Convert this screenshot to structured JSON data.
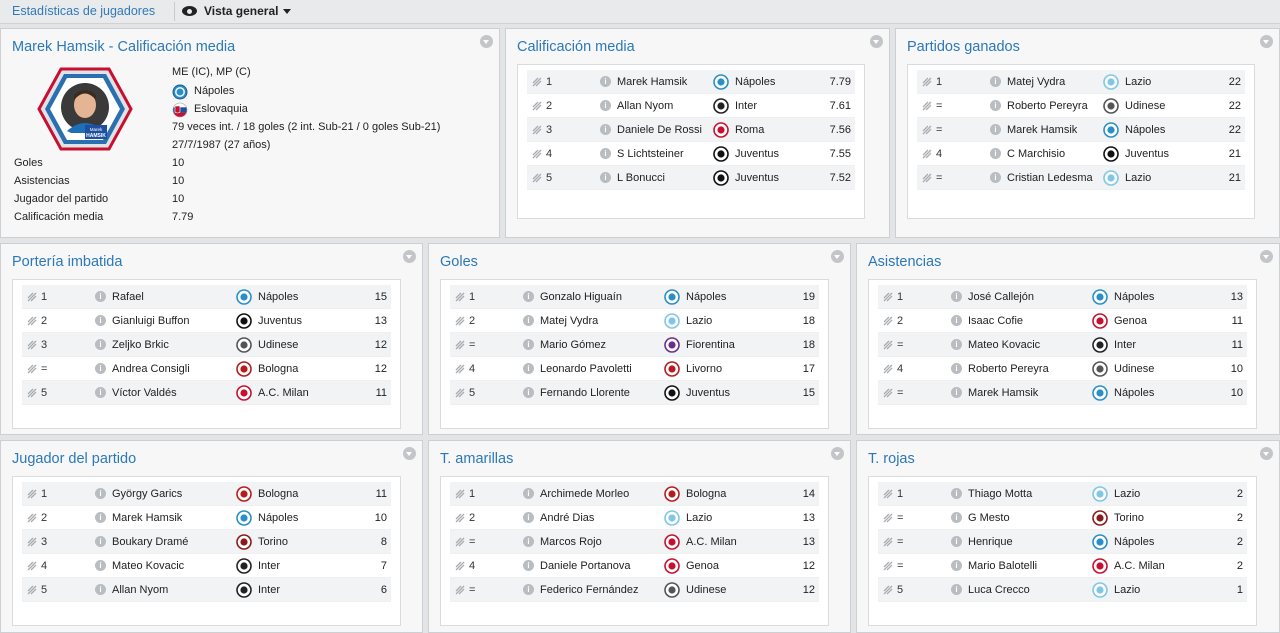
{
  "topbar": {
    "breadcrumb": "Estadísticas de jugadores",
    "view_label": "Vista general"
  },
  "colors": {
    "napoles": "#2a8fc8",
    "inter": "#222222",
    "roma": "#c8102e",
    "juventus": "#111111",
    "lazio": "#7fc6e8",
    "udinese": "#555555",
    "fiorentina": "#6b2c91",
    "livorno": "#b71c1c",
    "genoa": "#c8102e",
    "bologna": "#b71c1c",
    "acmilan": "#c8102e",
    "torino": "#8b1a1a",
    "eslovaquia": "#1e4fa0"
  },
  "profile": {
    "title": "Marek Hamsik - Calificación media",
    "positions": "ME (IC), MP (C)",
    "club": "Nápoles",
    "nation": "Eslovaquia",
    "caps": "79 veces int. / 18 goles (2 int. Sub-21 / 0 goles Sub-21)",
    "dob": "27/7/1987 (27 años)",
    "card_first": "Marek",
    "card_last": "HAMSIK",
    "stats": [
      {
        "label": "Goles",
        "value": "10"
      },
      {
        "label": "Asistencias",
        "value": "10"
      },
      {
        "label": "Jugador del partido",
        "value": "10"
      },
      {
        "label": "Calificación media",
        "value": "7.79"
      }
    ]
  },
  "panels": [
    {
      "title": "Calificación media",
      "rows": [
        {
          "pos": "1",
          "name": "Marek Hamsik",
          "club": "Nápoles",
          "badge": "napoles",
          "value": "7.79"
        },
        {
          "pos": "2",
          "name": "Allan Nyom",
          "club": "Inter",
          "badge": "inter",
          "value": "7.61"
        },
        {
          "pos": "3",
          "name": "Daniele De Rossi",
          "club": "Roma",
          "badge": "roma",
          "value": "7.56"
        },
        {
          "pos": "4",
          "name": "S Lichtsteiner",
          "club": "Juventus",
          "badge": "juventus",
          "value": "7.55"
        },
        {
          "pos": "5",
          "name": "L Bonucci",
          "club": "Juventus",
          "badge": "juventus",
          "value": "7.52"
        }
      ]
    },
    {
      "title": "Partidos ganados",
      "rows": [
        {
          "pos": "1",
          "name": "Matej Vydra",
          "club": "Lazio",
          "badge": "lazio",
          "value": "22"
        },
        {
          "pos": "=",
          "name": "Roberto Pereyra",
          "club": "Udinese",
          "badge": "udinese",
          "value": "22"
        },
        {
          "pos": "=",
          "name": "Marek Hamsik",
          "club": "Nápoles",
          "badge": "napoles",
          "value": "22"
        },
        {
          "pos": "4",
          "name": "C Marchisio",
          "club": "Juventus",
          "badge": "juventus",
          "value": "21"
        },
        {
          "pos": "=",
          "name": "Cristian Ledesma",
          "club": "Lazio",
          "badge": "lazio",
          "value": "21"
        }
      ]
    },
    {
      "title": "Portería imbatida",
      "rows": [
        {
          "pos": "1",
          "name": "Rafael",
          "club": "Nápoles",
          "badge": "napoles",
          "value": "15"
        },
        {
          "pos": "2",
          "name": "Gianluigi Buffon",
          "club": "Juventus",
          "badge": "juventus",
          "value": "13"
        },
        {
          "pos": "3",
          "name": "Zeljko Brkic",
          "club": "Udinese",
          "badge": "udinese",
          "value": "12"
        },
        {
          "pos": "=",
          "name": "Andrea Consigli",
          "club": "Bologna",
          "badge": "bologna",
          "value": "12"
        },
        {
          "pos": "5",
          "name": "Víctor Valdés",
          "club": "A.C. Milan",
          "badge": "acmilan",
          "value": "11"
        }
      ]
    },
    {
      "title": "Goles",
      "rows": [
        {
          "pos": "1",
          "name": "Gonzalo Higuaín",
          "club": "Nápoles",
          "badge": "napoles",
          "value": "19"
        },
        {
          "pos": "2",
          "name": "Matej Vydra",
          "club": "Lazio",
          "badge": "lazio",
          "value": "18"
        },
        {
          "pos": "=",
          "name": "Mario Gómez",
          "club": "Fiorentina",
          "badge": "fiorentina",
          "value": "18"
        },
        {
          "pos": "4",
          "name": "Leonardo Pavoletti",
          "club": "Livorno",
          "badge": "livorno",
          "value": "17"
        },
        {
          "pos": "5",
          "name": "Fernando Llorente",
          "club": "Juventus",
          "badge": "juventus",
          "value": "15"
        }
      ]
    },
    {
      "title": "Asistencias",
      "rows": [
        {
          "pos": "1",
          "name": "José Callejón",
          "club": "Nápoles",
          "badge": "napoles",
          "value": "13"
        },
        {
          "pos": "2",
          "name": "Isaac Cofie",
          "club": "Genoa",
          "badge": "genoa",
          "value": "11"
        },
        {
          "pos": "=",
          "name": "Mateo Kovacic",
          "club": "Inter",
          "badge": "inter",
          "value": "11"
        },
        {
          "pos": "4",
          "name": "Roberto Pereyra",
          "club": "Udinese",
          "badge": "udinese",
          "value": "10"
        },
        {
          "pos": "=",
          "name": "Marek Hamsik",
          "club": "Nápoles",
          "badge": "napoles",
          "value": "10"
        }
      ]
    },
    {
      "title": "Jugador del partido",
      "rows": [
        {
          "pos": "1",
          "name": "György Garics",
          "club": "Bologna",
          "badge": "bologna",
          "value": "11"
        },
        {
          "pos": "2",
          "name": "Marek Hamsik",
          "club": "Nápoles",
          "badge": "napoles",
          "value": "10"
        },
        {
          "pos": "3",
          "name": "Boukary Dramé",
          "club": "Torino",
          "badge": "torino",
          "value": "8"
        },
        {
          "pos": "4",
          "name": "Mateo Kovacic",
          "club": "Inter",
          "badge": "inter",
          "value": "7"
        },
        {
          "pos": "5",
          "name": "Allan Nyom",
          "club": "Inter",
          "badge": "inter",
          "value": "6"
        }
      ]
    },
    {
      "title": "T. amarillas",
      "rows": [
        {
          "pos": "1",
          "name": "Archimede Morleo",
          "club": "Bologna",
          "badge": "bologna",
          "value": "14"
        },
        {
          "pos": "2",
          "name": "André Dias",
          "club": "Lazio",
          "badge": "lazio",
          "value": "13"
        },
        {
          "pos": "=",
          "name": "Marcos Rojo",
          "club": "A.C. Milan",
          "badge": "acmilan",
          "value": "13"
        },
        {
          "pos": "4",
          "name": "Daniele Portanova",
          "club": "Genoa",
          "badge": "genoa",
          "value": "12"
        },
        {
          "pos": "=",
          "name": "Federico Fernández",
          "club": "Udinese",
          "badge": "udinese",
          "value": "12"
        }
      ]
    },
    {
      "title": "T. rojas",
      "rows": [
        {
          "pos": "1",
          "name": "Thiago Motta",
          "club": "Lazio",
          "badge": "lazio",
          "value": "2"
        },
        {
          "pos": "=",
          "name": "G Mesto",
          "club": "Torino",
          "badge": "torino",
          "value": "2"
        },
        {
          "pos": "=",
          "name": "Henrique",
          "club": "Nápoles",
          "badge": "napoles",
          "value": "2"
        },
        {
          "pos": "=",
          "name": "Mario Balotelli",
          "club": "A.C. Milan",
          "badge": "acmilan",
          "value": "2"
        },
        {
          "pos": "5",
          "name": "Luca Crecco",
          "club": "Lazio",
          "badge": "lazio",
          "value": "1"
        }
      ]
    }
  ]
}
